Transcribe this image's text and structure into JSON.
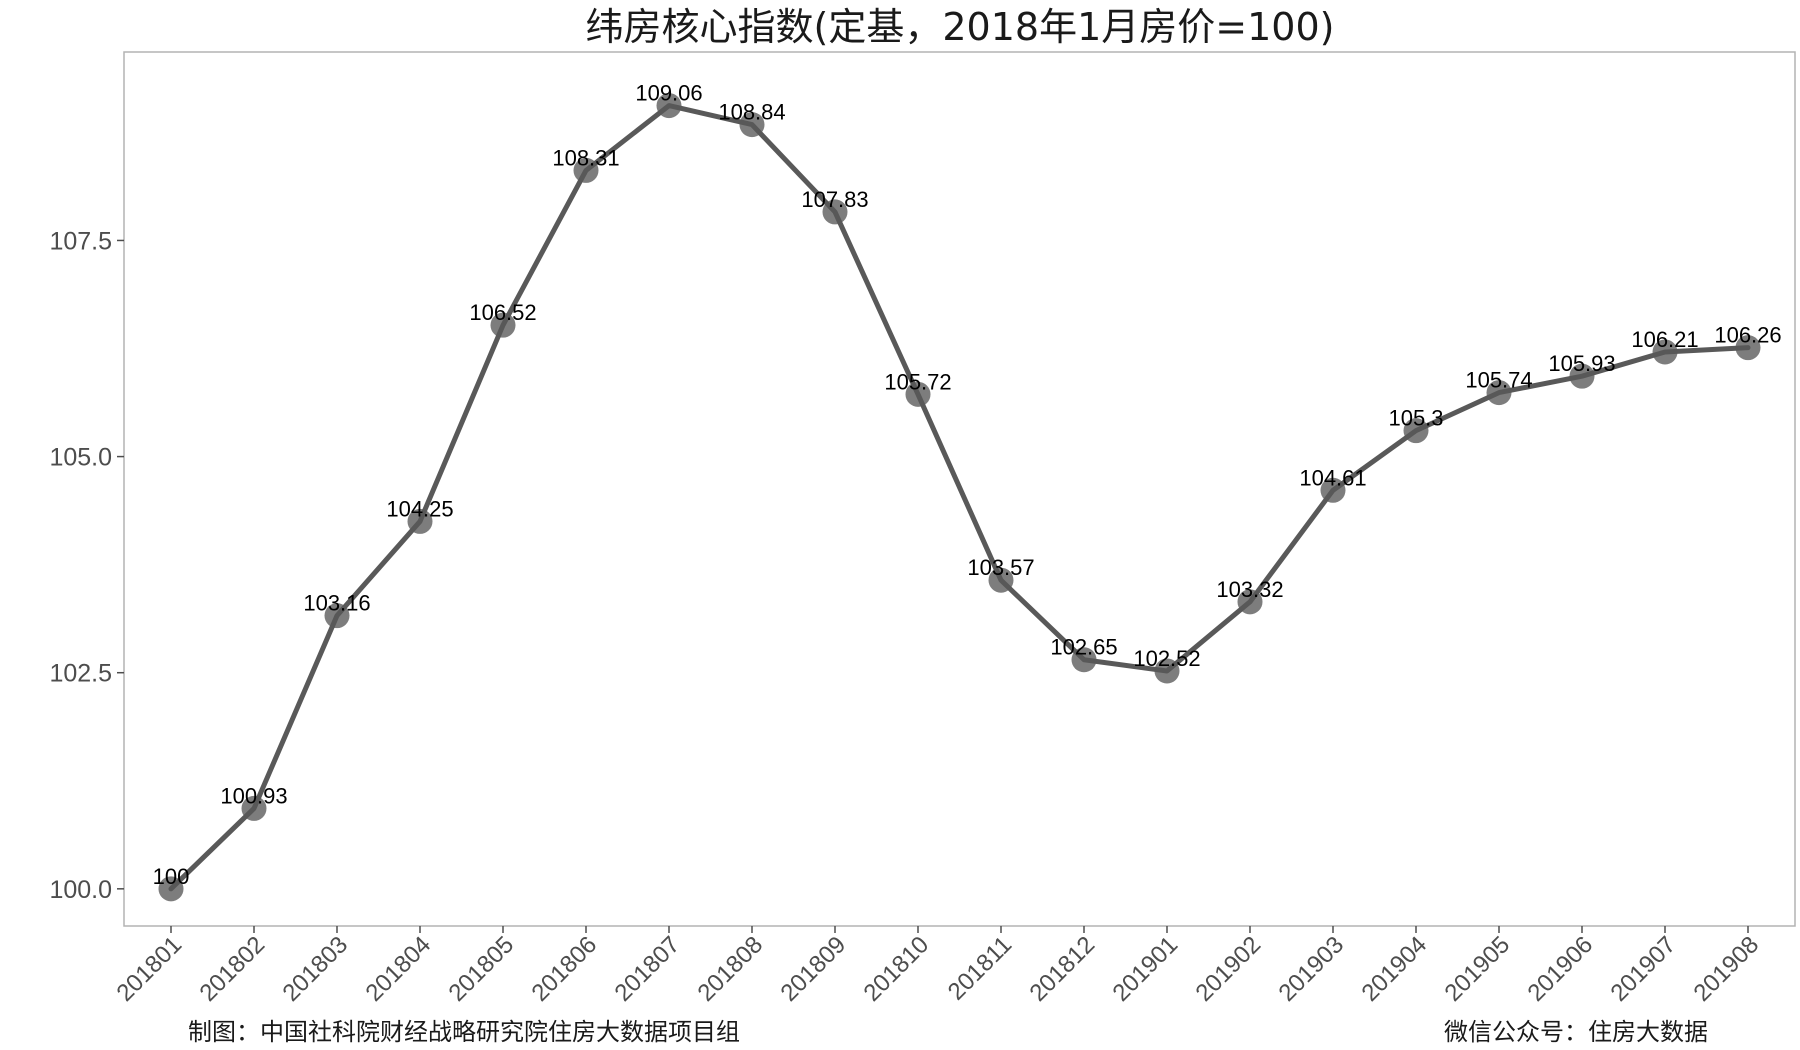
{
  "chart_data": {
    "type": "line",
    "title": "纬房核心指数(定基，2018年1月房价=100)",
    "xlabel": "",
    "ylabel": "",
    "categories": [
      "201801",
      "201802",
      "201803",
      "201804",
      "201805",
      "201806",
      "201807",
      "201808",
      "201809",
      "201810",
      "201811",
      "201812",
      "201901",
      "201902",
      "201903",
      "201904",
      "201905",
      "201906",
      "201907",
      "201908"
    ],
    "values": [
      100,
      100.93,
      103.16,
      104.25,
      106.52,
      108.31,
      109.06,
      108.84,
      107.83,
      105.72,
      103.57,
      102.65,
      102.52,
      103.32,
      104.61,
      105.3,
      105.74,
      105.93,
      106.21,
      106.26
    ],
    "data_labels": [
      "100",
      "100.93",
      "103.16",
      "104.25",
      "106.52",
      "108.31",
      "109.06",
      "108.84",
      "107.83",
      "105.72",
      "103.57",
      "102.65",
      "102.52",
      "103.32",
      "104.61",
      "105.3",
      "105.74",
      "105.93",
      "106.21",
      "106.26"
    ],
    "yticks": [
      100.0,
      102.5,
      105.0,
      107.5
    ],
    "ytick_labels": [
      "100.0",
      "102.5",
      "105.0",
      "107.5"
    ],
    "ylim": [
      99.57,
      109.68
    ],
    "grid": false,
    "legend": "none",
    "colors": {
      "line": "#595959",
      "marker": "#595959",
      "border": "#b3b3b3",
      "axis_text": "#4d4d4d"
    }
  },
  "footer": {
    "left": "制图：中国社科院财经战略研究院住房大数据项目组",
    "right": "微信公众号：住房大数据"
  }
}
